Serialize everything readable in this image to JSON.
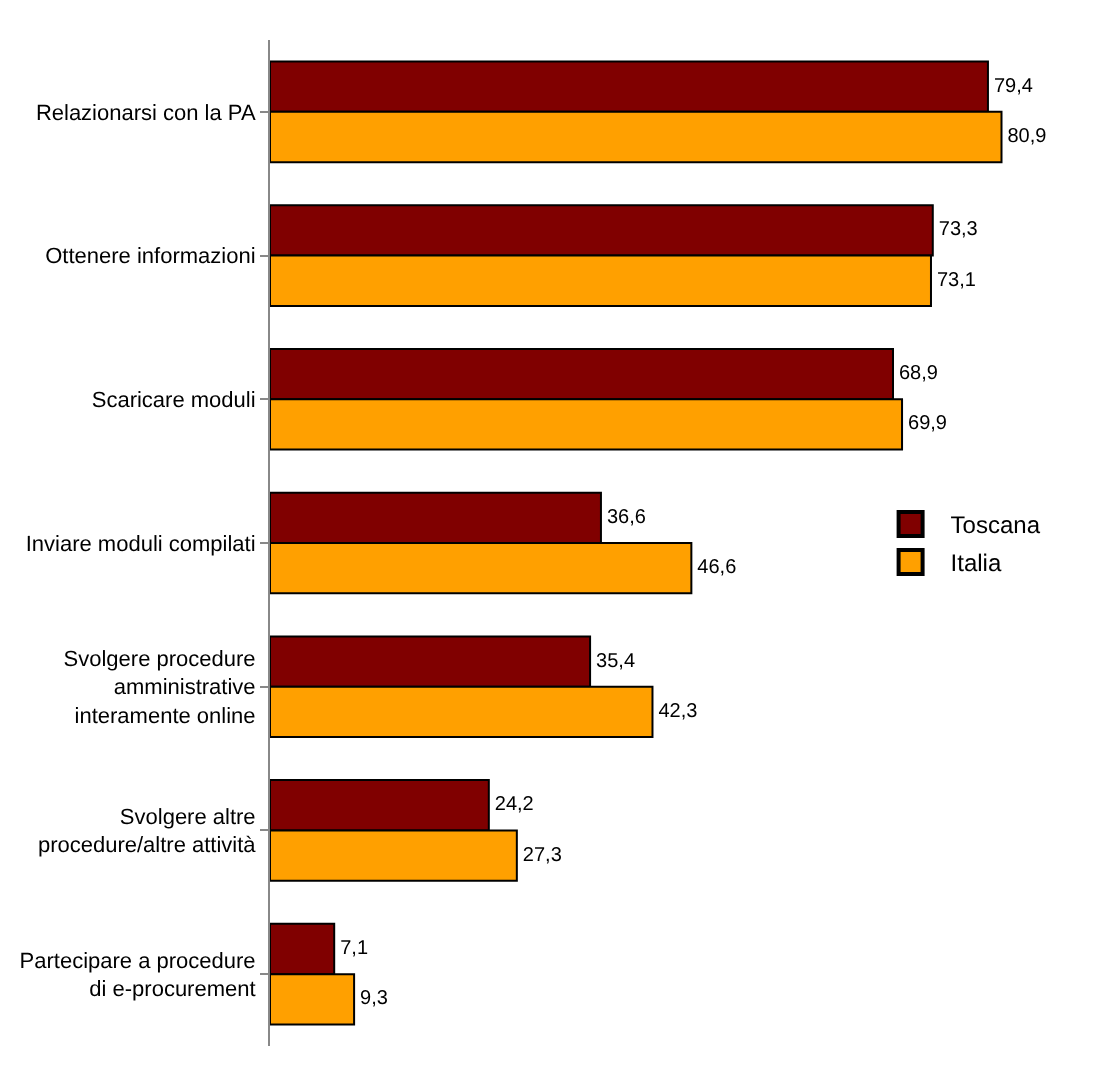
{
  "chart_data": {
    "type": "bar",
    "orientation": "horizontal",
    "categories": [
      "Relazionarsi con la PA",
      "Ottenere informazioni",
      "Scaricare moduli",
      "Inviare moduli compilati",
      "Svolgere procedure amministrative interamente online",
      "Svolgere altre procedure/altre attività",
      "Partecipare a procedure di e-procurement"
    ],
    "series": [
      {
        "name": "Toscana",
        "color": "#800000",
        "values": [
          79.4,
          73.3,
          68.9,
          36.6,
          35.4,
          24.2,
          7.1
        ],
        "value_labels": [
          "79,4",
          "73,3",
          "68,9",
          "36,6",
          "35,4",
          "24,2",
          "7,1"
        ]
      },
      {
        "name": "Italia",
        "color": "#ffa000",
        "values": [
          80.9,
          73.1,
          69.9,
          46.6,
          42.3,
          27.3,
          9.3
        ],
        "value_labels": [
          "80,9",
          "73,1",
          "69,9",
          "46,6",
          "42,3",
          "27,3",
          "9,3"
        ]
      }
    ],
    "legend": "right",
    "tick_labels": "y"
  }
}
